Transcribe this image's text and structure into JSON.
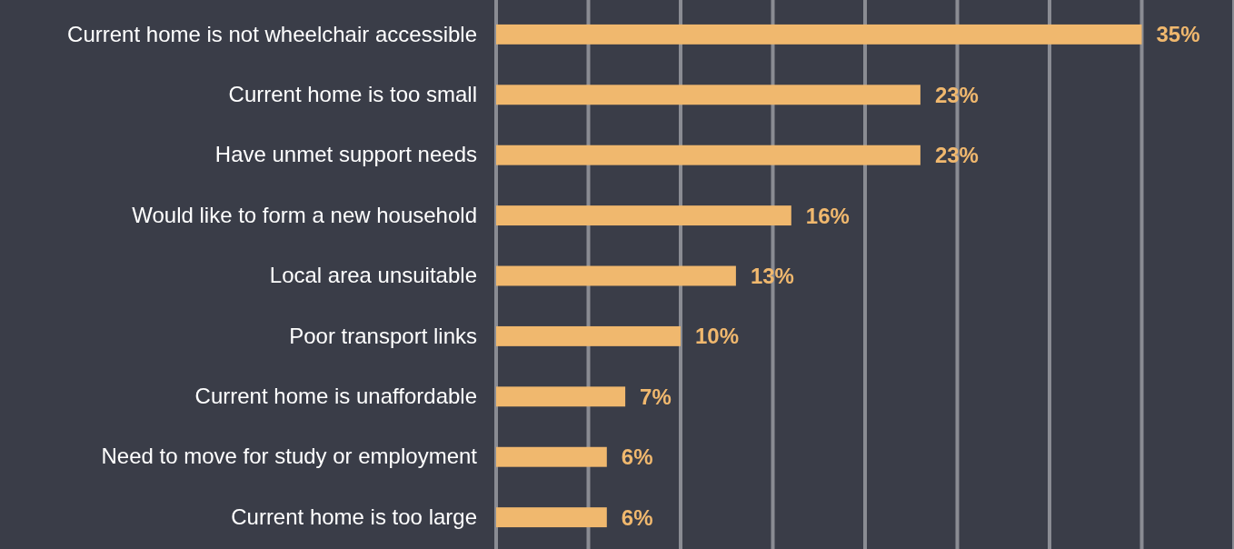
{
  "chart_data": {
    "type": "bar",
    "orientation": "horizontal",
    "categories": [
      "Current home is not wheelchair accessible",
      "Current home is too small",
      "Have unmet support needs",
      "Would like to form a new household",
      "Local area unsuitable",
      "Poor transport links",
      "Current home is unaffordable",
      "Need to move for study or employment",
      "Current home is too large"
    ],
    "values": [
      35,
      23,
      23,
      16,
      13,
      10,
      7,
      6,
      6
    ],
    "value_labels": [
      "35%",
      "23%",
      "23%",
      "16%",
      "13%",
      "10%",
      "7%",
      "6%",
      "6%"
    ],
    "color": "#f0b86e",
    "xlim": [
      0,
      40
    ],
    "xticks": [
      {
        "value": 0,
        "label": null
      },
      {
        "value": 5,
        "label": null
      },
      {
        "value": 10,
        "label": null
      },
      {
        "value": 15,
        "label": null
      },
      {
        "value": 20,
        "label": null
      },
      {
        "value": 25,
        "label": null
      },
      {
        "value": 30,
        "label": null
      },
      {
        "value": 35,
        "label": null
      },
      {
        "value": 40,
        "label": null
      }
    ],
    "grid": "x",
    "tick_labels": "y"
  }
}
